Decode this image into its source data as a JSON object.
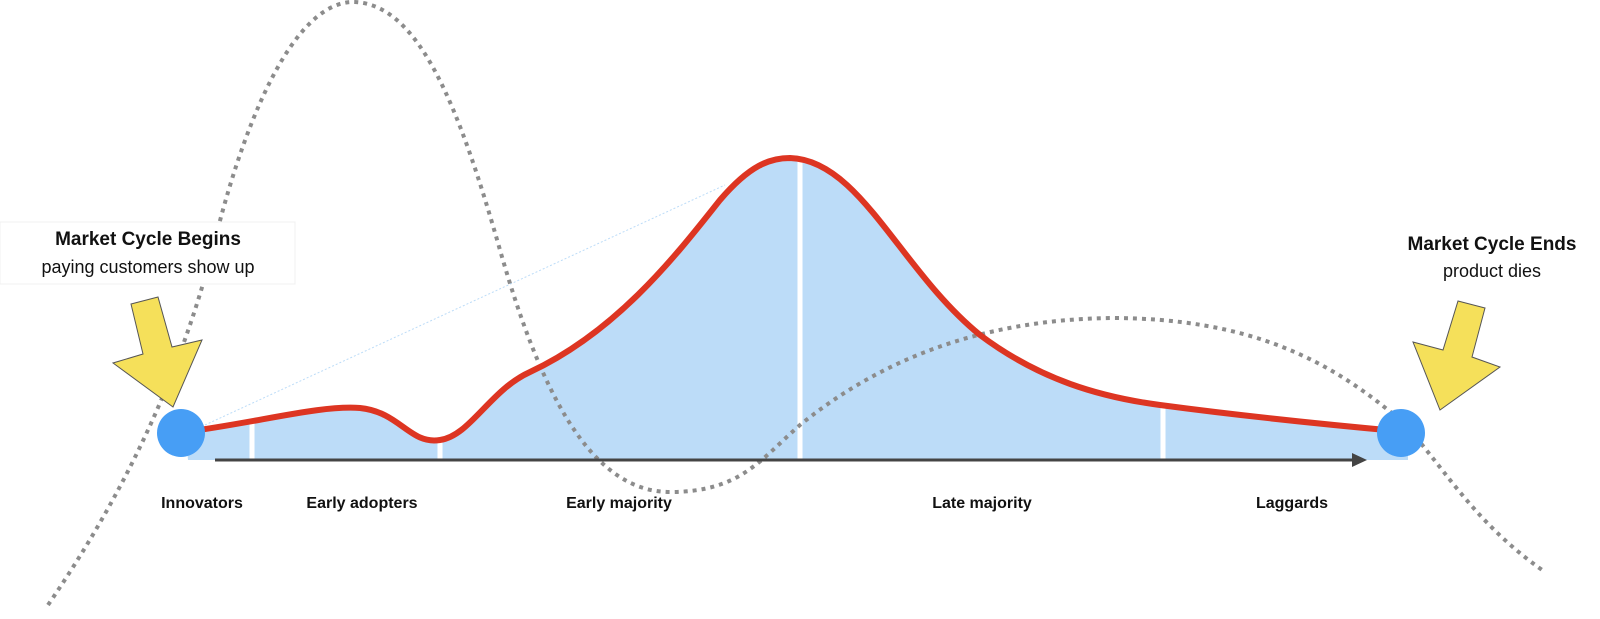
{
  "start": {
    "title": "Market Cycle Begins",
    "subtitle": "paying customers show up"
  },
  "end": {
    "title": "Market Cycle Ends",
    "subtitle": "product dies"
  },
  "segments": [
    "Innovators",
    "Early adopters",
    "Early majority",
    "Late majority",
    "Laggards"
  ],
  "colors": {
    "curve": "#dd3522",
    "fill": "#bcdcf8",
    "marker": "#479ef5",
    "arrow": "#f5e05a",
    "dotted": "#8c8c8c",
    "axis": "#444444"
  }
}
